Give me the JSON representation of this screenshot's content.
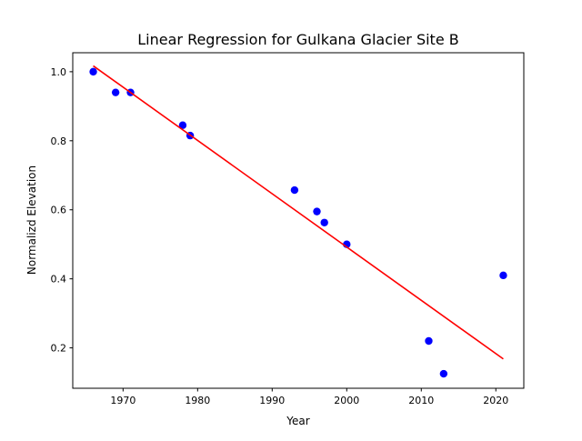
{
  "chart_data": {
    "type": "scatter",
    "title": "Linear Regression for Gulkana Glacier Site B",
    "xlabel": "Year",
    "ylabel": "Normalizd Elevation",
    "xlim": [
      1963.25,
      2023.75
    ],
    "ylim": [
      0.083,
      1.055
    ],
    "xticks": [
      1970,
      1980,
      1990,
      2000,
      2010,
      2020
    ],
    "yticks": [
      0.2,
      0.4,
      0.6,
      0.8,
      1.0
    ],
    "xtick_labels": [
      "1970",
      "1980",
      "1990",
      "2000",
      "2010",
      "2020"
    ],
    "ytick_labels": [
      "0.2",
      "0.4",
      "0.6",
      "0.8",
      "1.0"
    ],
    "grid": false,
    "series": [
      {
        "kind": "scatter",
        "color": "#0000ff",
        "points": [
          {
            "x": 1966,
            "y": 1.0
          },
          {
            "x": 1969,
            "y": 0.94
          },
          {
            "x": 1971,
            "y": 0.94
          },
          {
            "x": 1978,
            "y": 0.845
          },
          {
            "x": 1979,
            "y": 0.815
          },
          {
            "x": 1993,
            "y": 0.657
          },
          {
            "x": 1996,
            "y": 0.595
          },
          {
            "x": 1997,
            "y": 0.563
          },
          {
            "x": 2000,
            "y": 0.5
          },
          {
            "x": 2011,
            "y": 0.22
          },
          {
            "x": 2013,
            "y": 0.125
          },
          {
            "x": 2021,
            "y": 0.41
          }
        ]
      },
      {
        "kind": "line",
        "color": "#ff0000",
        "points": [
          {
            "x": 1966,
            "y": 1.017
          },
          {
            "x": 2021,
            "y": 0.168
          }
        ]
      }
    ]
  }
}
